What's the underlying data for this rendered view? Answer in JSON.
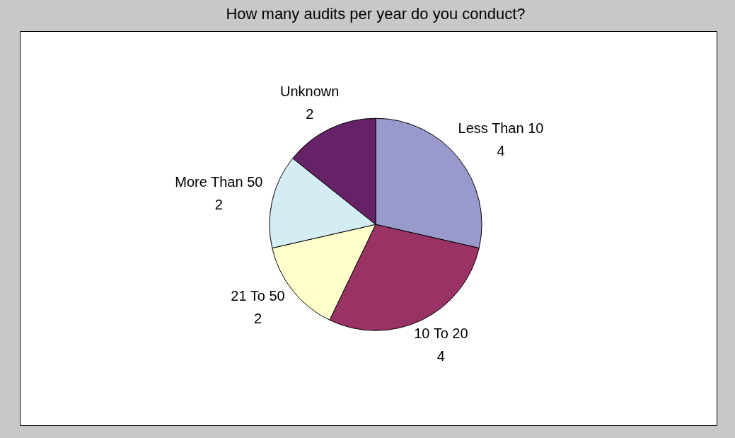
{
  "chart_data": {
    "type": "pie",
    "title": "How many audits per year do you conduct?",
    "categories": [
      "Less Than 10",
      "10 To 20",
      "21 To 50",
      "More Than 50",
      "Unknown"
    ],
    "values": [
      4,
      4,
      2,
      2,
      2
    ],
    "colors": [
      "#9999cc",
      "#993366",
      "#ffffcc",
      "#d4ecf4",
      "#662266"
    ],
    "data_labels": true,
    "legend": false
  }
}
